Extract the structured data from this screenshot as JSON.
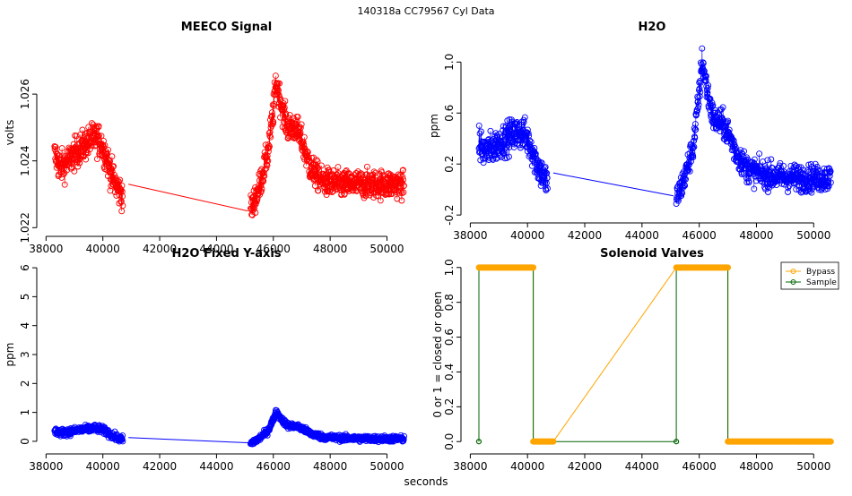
{
  "page": {
    "title": "140318a    CC79567   Cyl Data",
    "xlabel": "seconds"
  },
  "chart_data": [
    {
      "id": "meeco",
      "type": "scatter",
      "title": "MEECO Signal",
      "ylabel": "volts",
      "color": "#ff0000",
      "xlim": [
        37800,
        50900
      ],
      "ylim": [
        1.0219,
        1.0278
      ],
      "xticks": [
        38000,
        40000,
        42000,
        44000,
        46000,
        48000,
        50000
      ],
      "yticks": [
        1.022,
        1.024,
        1.026
      ],
      "ytick_labels": [
        "1.022",
        "1.024",
        "1.026"
      ],
      "series": [
        {
          "name": "MEECO",
          "segments": [
            {
              "x": [
                38300,
                38500,
                38800,
                39100,
                39400,
                39700,
                39900,
                40100,
                40300,
                40500,
                40700
              ],
              "y": [
                1.0242,
                1.0238,
                1.024,
                1.0243,
                1.0245,
                1.0247,
                1.0246,
                1.0242,
                1.0236,
                1.0232,
                1.023
              ],
              "noise": 0.00045
            },
            {
              "x": [
                45200,
                45500,
                45800,
                46000,
                46100,
                46300,
                46500,
                46800,
                47000,
                47300,
                47700,
                48200,
                48800,
                49400,
                50000,
                50600
              ],
              "y": [
                1.0225,
                1.0232,
                1.0242,
                1.0255,
                1.0264,
                1.0256,
                1.025,
                1.025,
                1.0246,
                1.0238,
                1.0234,
                1.0233,
                1.0233,
                1.0233,
                1.0233,
                1.0233
              ],
              "noise": 0.0004
            }
          ],
          "gap_line": {
            "x": [
              40900,
              45100
            ],
            "y": [
              1.0233,
              1.0225
            ]
          }
        }
      ]
    },
    {
      "id": "h2o",
      "type": "scatter",
      "title": "H2O",
      "ylabel": "ppm",
      "color": "#0000ff",
      "xlim": [
        37800,
        50900
      ],
      "ylim": [
        -0.22,
        1.22
      ],
      "xticks": [
        38000,
        40000,
        42000,
        44000,
        46000,
        48000,
        50000
      ],
      "yticks": [
        -0.2,
        0.2,
        0.6,
        1.0
      ],
      "ytick_labels": [
        "-0.2",
        "0.2",
        "0.6",
        "1.0"
      ],
      "series": [
        {
          "name": "H2O",
          "segments": [
            {
              "x": [
                38300,
                38500,
                38800,
                39100,
                39400,
                39700,
                39900,
                40100,
                40300,
                40500,
                40700
              ],
              "y": [
                0.36,
                0.3,
                0.33,
                0.38,
                0.42,
                0.45,
                0.43,
                0.35,
                0.22,
                0.12,
                0.06
              ],
              "noise": 0.12
            },
            {
              "x": [
                45200,
                45500,
                45800,
                46000,
                46100,
                46300,
                46500,
                46800,
                47000,
                47300,
                47700,
                48200,
                48800,
                49400,
                50000,
                50600
              ],
              "y": [
                -0.08,
                0.1,
                0.35,
                0.75,
                1.02,
                0.75,
                0.55,
                0.52,
                0.45,
                0.28,
                0.16,
                0.12,
                0.1,
                0.09,
                0.09,
                0.09
              ],
              "noise": 0.1
            }
          ],
          "gap_line": {
            "x": [
              40900,
              45100
            ],
            "y": [
              0.13,
              -0.05
            ]
          }
        }
      ]
    },
    {
      "id": "h2o_fixed",
      "type": "scatter",
      "title": "H2O Fixed Y-axis",
      "ylabel": "ppm",
      "color": "#0000ff",
      "xlim": [
        37800,
        50900
      ],
      "ylim": [
        -0.25,
        6.25
      ],
      "xticks": [
        38000,
        40000,
        42000,
        44000,
        46000,
        48000,
        50000
      ],
      "yticks": [
        0,
        1,
        2,
        3,
        4,
        5,
        6
      ],
      "ytick_labels": [
        "0",
        "1",
        "2",
        "3",
        "4",
        "5",
        "6"
      ],
      "series": [
        {
          "name": "H2O",
          "segments": [
            {
              "x": [
                38300,
                38500,
                38800,
                39100,
                39400,
                39700,
                39900,
                40100,
                40300,
                40500,
                40700
              ],
              "y": [
                0.36,
                0.3,
                0.33,
                0.38,
                0.42,
                0.45,
                0.43,
                0.35,
                0.22,
                0.12,
                0.06
              ],
              "noise": 0.12
            },
            {
              "x": [
                45200,
                45500,
                45800,
                46000,
                46100,
                46300,
                46500,
                46800,
                47000,
                47300,
                47700,
                48200,
                48800,
                49400,
                50000,
                50600
              ],
              "y": [
                -0.08,
                0.1,
                0.35,
                0.75,
                1.02,
                0.75,
                0.55,
                0.52,
                0.45,
                0.28,
                0.16,
                0.12,
                0.1,
                0.09,
                0.09,
                0.09
              ],
              "noise": 0.1
            }
          ],
          "gap_line": {
            "x": [
              40900,
              45100
            ],
            "y": [
              0.13,
              -0.05
            ]
          }
        }
      ]
    },
    {
      "id": "valves",
      "type": "line",
      "title": "Solenoid Valves",
      "ylabel": "0 or 1 = closed or open",
      "xlim": [
        37800,
        50900
      ],
      "ylim": [
        -0.04,
        1.04
      ],
      "xticks": [
        38000,
        40000,
        42000,
        44000,
        46000,
        48000,
        50000
      ],
      "yticks": [
        0.0,
        0.2,
        0.4,
        0.6,
        0.8,
        1.0
      ],
      "ytick_labels": [
        "0.0",
        "0.2",
        "0.4",
        "0.6",
        "0.8",
        "1.0"
      ],
      "legend": {
        "placement": "top-right",
        "entries": [
          "Bypass",
          "Sample"
        ]
      },
      "series": [
        {
          "name": "Bypass",
          "color": "#ffa500",
          "x": [
            38300,
            40200,
            40200,
            40900,
            45200,
            47000,
            47000,
            50600
          ],
          "y": [
            1,
            1,
            0,
            0,
            1,
            1,
            0,
            0
          ],
          "dense_ranges": [
            [
              38300,
              40200
            ],
            [
              40200,
              40900
            ],
            [
              45200,
              47000
            ],
            [
              47000,
              50600
            ]
          ]
        },
        {
          "name": "Sample",
          "color": "#006400",
          "x": [
            38300,
            38300,
            40200,
            40200,
            40900,
            45200,
            45200,
            47000,
            47000
          ],
          "y": [
            0,
            1,
            1,
            0,
            0,
            0,
            1,
            1,
            0
          ],
          "dense_ranges": []
        }
      ]
    }
  ]
}
